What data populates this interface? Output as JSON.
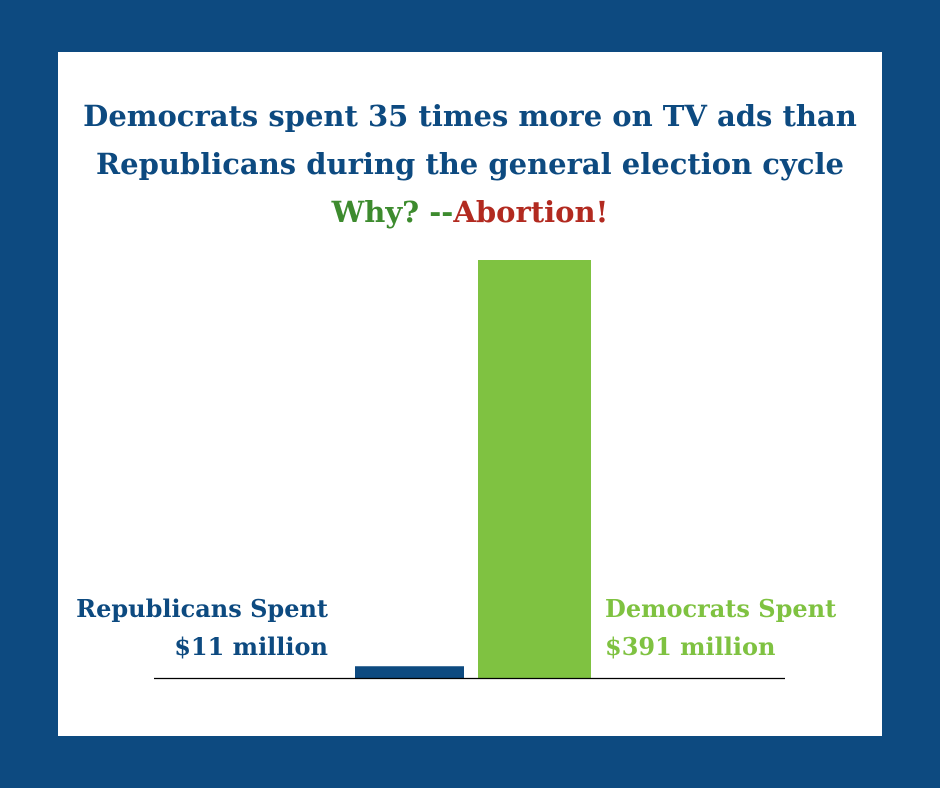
{
  "title": {
    "line1": "Democrats spent 35 times more on TV ads than",
    "line2": "Republicans during the general election cycle",
    "why": "Why? --",
    "abortion": "Abortion!"
  },
  "colors": {
    "background": "#0d4a80",
    "card": "#ffffff",
    "republicans": "#0d4a80",
    "democrats": "#7fc241",
    "why": "#3d8b2e",
    "abortion": "#b22a20"
  },
  "labels": {
    "republicans_line1": "Republicans Spent",
    "republicans_line2": "$11 million",
    "democrats_line1": "Democrats Spent",
    "democrats_line2": "$391 million"
  },
  "chart_data": {
    "type": "bar",
    "title": "Democrats spent 35 times more on TV ads than Republicans during the general election cycle",
    "categories": [
      "Republicans Spent",
      "Democrats Spent"
    ],
    "values": [
      11,
      391
    ],
    "colors": [
      "#0d4a80",
      "#7fc241"
    ],
    "xlabel": "",
    "ylabel": "",
    "ylim": [
      0,
      391
    ],
    "grid": false,
    "legend": "none"
  }
}
